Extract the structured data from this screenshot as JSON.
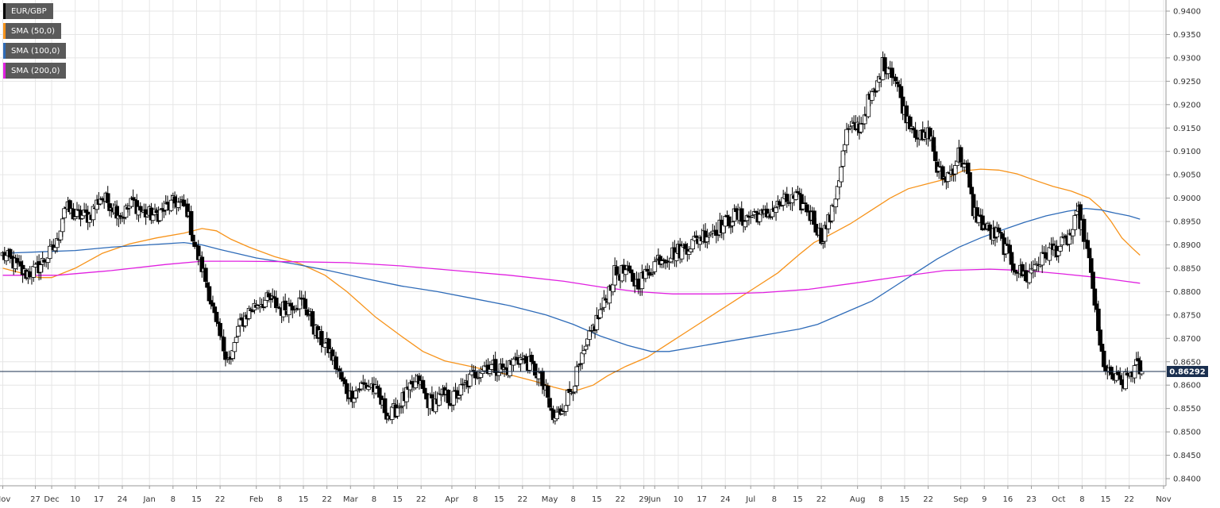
{
  "chart_data": {
    "type": "candlestick",
    "symbol": "EUR/GBP",
    "timeframe": "daily",
    "y_axis": {
      "min": 0.84,
      "max": 0.94,
      "ticks": [
        "0.9400",
        "0.9350",
        "0.9300",
        "0.9250",
        "0.9200",
        "0.9150",
        "0.9100",
        "0.9050",
        "0.9000",
        "0.8950",
        "0.8900",
        "0.8850",
        "0.8800",
        "0.8750",
        "0.8700",
        "0.8650",
        "0.8600",
        "0.8550",
        "0.8500",
        "0.8450",
        "0.8400"
      ],
      "grid": true,
      "position": "right"
    },
    "x_axis": {
      "ticks": [
        {
          "label": "Nov",
          "bar": 0
        },
        {
          "label": "27",
          "bar": 18
        },
        {
          "label": "Dec",
          "bar": 27
        },
        {
          "label": "10",
          "bar": 40
        },
        {
          "label": "17",
          "bar": 53
        },
        {
          "label": "24",
          "bar": 66
        },
        {
          "label": "Jan",
          "bar": 81
        },
        {
          "label": "8",
          "bar": 94
        },
        {
          "label": "15",
          "bar": 107
        },
        {
          "label": "22",
          "bar": 120
        },
        {
          "label": "Feb",
          "bar": 140
        },
        {
          "label": "8",
          "bar": 153
        },
        {
          "label": "15",
          "bar": 166
        },
        {
          "label": "22",
          "bar": 179
        },
        {
          "label": "Mar",
          "bar": 192
        },
        {
          "label": "8",
          "bar": 205
        },
        {
          "label": "15",
          "bar": 218
        },
        {
          "label": "22",
          "bar": 231
        },
        {
          "label": "Apr",
          "bar": 248
        },
        {
          "label": "8",
          "bar": 261
        },
        {
          "label": "15",
          "bar": 274
        },
        {
          "label": "22",
          "bar": 287
        },
        {
          "label": "May",
          "bar": 302
        },
        {
          "label": "8",
          "bar": 315
        },
        {
          "label": "15",
          "bar": 328
        },
        {
          "label": "22",
          "bar": 341
        },
        {
          "label": "29",
          "bar": 354
        },
        {
          "label": "Jun",
          "bar": 360
        },
        {
          "label": "10",
          "bar": 373
        },
        {
          "label": "17",
          "bar": 386
        },
        {
          "label": "24",
          "bar": 399
        },
        {
          "label": "Jul",
          "bar": 413
        },
        {
          "label": "8",
          "bar": 426
        },
        {
          "label": "15",
          "bar": 439
        },
        {
          "label": "22",
          "bar": 452
        },
        {
          "label": "Aug",
          "bar": 472
        },
        {
          "label": "8",
          "bar": 485
        },
        {
          "label": "15",
          "bar": 498
        },
        {
          "label": "22",
          "bar": 511
        },
        {
          "label": "Sep",
          "bar": 529
        },
        {
          "label": "9",
          "bar": 542
        },
        {
          "label": "16",
          "bar": 555
        },
        {
          "label": "23",
          "bar": 568
        },
        {
          "label": "Oct",
          "bar": 583
        },
        {
          "label": "8",
          "bar": 596
        },
        {
          "label": "15",
          "bar": 609
        },
        {
          "label": "22",
          "bar": 622
        },
        {
          "label": "Nov",
          "bar": 641
        }
      ]
    },
    "path_nodes": [
      [
        0,
        0.8878
      ],
      [
        6,
        0.8862
      ],
      [
        12,
        0.8838
      ],
      [
        18,
        0.8845
      ],
      [
        24,
        0.8872
      ],
      [
        30,
        0.8902
      ],
      [
        34,
        0.8982
      ],
      [
        40,
        0.8962
      ],
      [
        48,
        0.8962
      ],
      [
        54,
        0.9002
      ],
      [
        60,
        0.8988
      ],
      [
        66,
        0.8962
      ],
      [
        72,
        0.8992
      ],
      [
        78,
        0.8968
      ],
      [
        84,
        0.8962
      ],
      [
        90,
        0.8978
      ],
      [
        96,
        0.8992
      ],
      [
        102,
        0.8975
      ],
      [
        106,
        0.8898
      ],
      [
        110,
        0.8852
      ],
      [
        114,
        0.8798
      ],
      [
        118,
        0.8725
      ],
      [
        122,
        0.868
      ],
      [
        126,
        0.865
      ],
      [
        130,
        0.872
      ],
      [
        136,
        0.8758
      ],
      [
        142,
        0.8778
      ],
      [
        148,
        0.8782
      ],
      [
        154,
        0.8762
      ],
      [
        160,
        0.8775
      ],
      [
        166,
        0.8778
      ],
      [
        170,
        0.8742
      ],
      [
        174,
        0.8705
      ],
      [
        180,
        0.8678
      ],
      [
        184,
        0.8642
      ],
      [
        188,
        0.8602
      ],
      [
        192,
        0.8578
      ],
      [
        198,
        0.8598
      ],
      [
        204,
        0.86
      ],
      [
        210,
        0.8555
      ],
      [
        214,
        0.8532
      ],
      [
        220,
        0.8565
      ],
      [
        226,
        0.8592
      ],
      [
        230,
        0.861
      ],
      [
        234,
        0.8568
      ],
      [
        238,
        0.8562
      ],
      [
        244,
        0.8578
      ],
      [
        248,
        0.8568
      ],
      [
        254,
        0.8592
      ],
      [
        260,
        0.8622
      ],
      [
        266,
        0.8642
      ],
      [
        272,
        0.8638
      ],
      [
        278,
        0.8632
      ],
      [
        284,
        0.866
      ],
      [
        290,
        0.8648
      ],
      [
        296,
        0.8622
      ],
      [
        300,
        0.8582
      ],
      [
        304,
        0.8525
      ],
      [
        308,
        0.8545
      ],
      [
        314,
        0.8592
      ],
      [
        320,
        0.8652
      ],
      [
        326,
        0.8722
      ],
      [
        332,
        0.8772
      ],
      [
        338,
        0.8838
      ],
      [
        344,
        0.8842
      ],
      [
        350,
        0.8818
      ],
      [
        356,
        0.8838
      ],
      [
        362,
        0.8872
      ],
      [
        368,
        0.8878
      ],
      [
        374,
        0.8888
      ],
      [
        380,
        0.8902
      ],
      [
        386,
        0.8918
      ],
      [
        392,
        0.8932
      ],
      [
        398,
        0.8942
      ],
      [
        404,
        0.8962
      ],
      [
        410,
        0.8955
      ],
      [
        416,
        0.8968
      ],
      [
        420,
        0.8958
      ],
      [
        426,
        0.8978
      ],
      [
        432,
        0.8992
      ],
      [
        438,
        0.8998
      ],
      [
        444,
        0.8978
      ],
      [
        448,
        0.8952
      ],
      [
        452,
        0.8915
      ],
      [
        458,
        0.8968
      ],
      [
        462,
        0.9048
      ],
      [
        466,
        0.9138
      ],
      [
        470,
        0.9152
      ],
      [
        474,
        0.9155
      ],
      [
        478,
        0.9205
      ],
      [
        482,
        0.9228
      ],
      [
        486,
        0.9285
      ],
      [
        490,
        0.9282
      ],
      [
        494,
        0.9242
      ],
      [
        498,
        0.9185
      ],
      [
        504,
        0.9145
      ],
      [
        508,
        0.9122
      ],
      [
        512,
        0.9142
      ],
      [
        516,
        0.9062
      ],
      [
        520,
        0.9042
      ],
      [
        524,
        0.9058
      ],
      [
        528,
        0.9095
      ],
      [
        532,
        0.9062
      ],
      [
        536,
        0.8975
      ],
      [
        540,
        0.895
      ],
      [
        546,
        0.8922
      ],
      [
        550,
        0.8922
      ],
      [
        554,
        0.8888
      ],
      [
        558,
        0.8858
      ],
      [
        562,
        0.8842
      ],
      [
        566,
        0.883
      ],
      [
        570,
        0.886
      ],
      [
        574,
        0.8868
      ],
      [
        578,
        0.8888
      ],
      [
        582,
        0.8892
      ],
      [
        586,
        0.8902
      ],
      [
        590,
        0.8922
      ],
      [
        594,
        0.8968
      ],
      [
        598,
        0.8905
      ],
      [
        602,
        0.8812
      ],
      [
        606,
        0.8678
      ],
      [
        610,
        0.8622
      ],
      [
        614,
        0.8615
      ],
      [
        618,
        0.86
      ],
      [
        622,
        0.8622
      ],
      [
        626,
        0.864
      ],
      [
        629,
        0.8629
      ]
    ],
    "sma_series": [
      {
        "name": "SMA (50,0)",
        "color": "#f7931a",
        "values": [
          [
            0,
            0.885
          ],
          [
            20,
            0.883
          ],
          [
            27,
            0.883
          ],
          [
            40,
            0.885
          ],
          [
            55,
            0.8882
          ],
          [
            70,
            0.8902
          ],
          [
            85,
            0.8915
          ],
          [
            100,
            0.8925
          ],
          [
            110,
            0.8935
          ],
          [
            118,
            0.893
          ],
          [
            126,
            0.8912
          ],
          [
            136,
            0.8895
          ],
          [
            150,
            0.8875
          ],
          [
            164,
            0.886
          ],
          [
            178,
            0.8835
          ],
          [
            190,
            0.88
          ],
          [
            206,
            0.8745
          ],
          [
            220,
            0.8705
          ],
          [
            232,
            0.8672
          ],
          [
            244,
            0.8652
          ],
          [
            256,
            0.8642
          ],
          [
            270,
            0.863
          ],
          [
            282,
            0.862
          ],
          [
            294,
            0.8608
          ],
          [
            304,
            0.8596
          ],
          [
            310,
            0.859
          ],
          [
            318,
            0.859
          ],
          [
            326,
            0.86
          ],
          [
            334,
            0.862
          ],
          [
            344,
            0.864
          ],
          [
            356,
            0.866
          ],
          [
            368,
            0.869
          ],
          [
            380,
            0.872
          ],
          [
            392,
            0.875
          ],
          [
            404,
            0.878
          ],
          [
            416,
            0.881
          ],
          [
            428,
            0.884
          ],
          [
            440,
            0.888
          ],
          [
            448,
            0.8905
          ],
          [
            456,
            0.892
          ],
          [
            468,
            0.8945
          ],
          [
            480,
            0.8975
          ],
          [
            490,
            0.9
          ],
          [
            500,
            0.902
          ],
          [
            510,
            0.903
          ],
          [
            520,
            0.904
          ],
          [
            530,
            0.9058
          ],
          [
            540,
            0.9062
          ],
          [
            550,
            0.906
          ],
          [
            560,
            0.9052
          ],
          [
            570,
            0.9038
          ],
          [
            580,
            0.9025
          ],
          [
            590,
            0.9015
          ],
          [
            600,
            0.9
          ],
          [
            606,
            0.898
          ],
          [
            612,
            0.895
          ],
          [
            618,
            0.8915
          ],
          [
            624,
            0.8892
          ],
          [
            628,
            0.8878
          ]
        ]
      },
      {
        "name": "SMA (100,0)",
        "color": "#2e6bb8",
        "values": [
          [
            0,
            0.8882
          ],
          [
            20,
            0.8885
          ],
          [
            40,
            0.8888
          ],
          [
            60,
            0.8895
          ],
          [
            80,
            0.89
          ],
          [
            100,
            0.8905
          ],
          [
            110,
            0.89
          ],
          [
            120,
            0.889
          ],
          [
            140,
            0.8872
          ],
          [
            160,
            0.886
          ],
          [
            180,
            0.8845
          ],
          [
            200,
            0.8828
          ],
          [
            220,
            0.8812
          ],
          [
            240,
            0.88
          ],
          [
            260,
            0.8785
          ],
          [
            280,
            0.877
          ],
          [
            300,
            0.875
          ],
          [
            315,
            0.873
          ],
          [
            330,
            0.8705
          ],
          [
            345,
            0.8685
          ],
          [
            358,
            0.8672
          ],
          [
            368,
            0.8672
          ],
          [
            380,
            0.868
          ],
          [
            395,
            0.869
          ],
          [
            410,
            0.87
          ],
          [
            425,
            0.871
          ],
          [
            440,
            0.872
          ],
          [
            450,
            0.873
          ],
          [
            465,
            0.8755
          ],
          [
            480,
            0.878
          ],
          [
            492,
            0.881
          ],
          [
            504,
            0.884
          ],
          [
            516,
            0.887
          ],
          [
            528,
            0.8895
          ],
          [
            540,
            0.8915
          ],
          [
            552,
            0.8932
          ],
          [
            564,
            0.8948
          ],
          [
            576,
            0.8962
          ],
          [
            588,
            0.8972
          ],
          [
            598,
            0.8978
          ],
          [
            606,
            0.8975
          ],
          [
            614,
            0.8968
          ],
          [
            622,
            0.8962
          ],
          [
            628,
            0.8955
          ]
        ]
      },
      {
        "name": "SMA (200,0)",
        "color": "#e020e0",
        "values": [
          [
            0,
            0.8835
          ],
          [
            30,
            0.8835
          ],
          [
            60,
            0.8845
          ],
          [
            90,
            0.8858
          ],
          [
            110,
            0.8865
          ],
          [
            130,
            0.8865
          ],
          [
            160,
            0.8864
          ],
          [
            190,
            0.8862
          ],
          [
            220,
            0.8855
          ],
          [
            250,
            0.8845
          ],
          [
            280,
            0.8835
          ],
          [
            310,
            0.8822
          ],
          [
            330,
            0.881
          ],
          [
            350,
            0.88
          ],
          [
            370,
            0.8795
          ],
          [
            395,
            0.8795
          ],
          [
            420,
            0.8798
          ],
          [
            445,
            0.8805
          ],
          [
            470,
            0.8818
          ],
          [
            495,
            0.8832
          ],
          [
            520,
            0.8845
          ],
          [
            545,
            0.8848
          ],
          [
            565,
            0.8845
          ],
          [
            585,
            0.8838
          ],
          [
            605,
            0.883
          ],
          [
            620,
            0.8822
          ],
          [
            628,
            0.8818
          ]
        ]
      }
    ],
    "last_price": 0.86292,
    "last_price_label": "0.86292",
    "colors": {
      "bull": "#ffffff",
      "bear": "#000000",
      "wick": "#000000",
      "grid": "#e6e6e6",
      "price_line": "#1a2f4f"
    }
  },
  "legend": [
    {
      "label": "EUR/GBP",
      "swatch": "#000000"
    },
    {
      "label": "SMA (50,0)",
      "swatch": "#f7931a"
    },
    {
      "label": "SMA (100,0)",
      "swatch": "#2e6bb8"
    },
    {
      "label": "SMA (200,0)",
      "swatch": "#e020e0"
    }
  ]
}
